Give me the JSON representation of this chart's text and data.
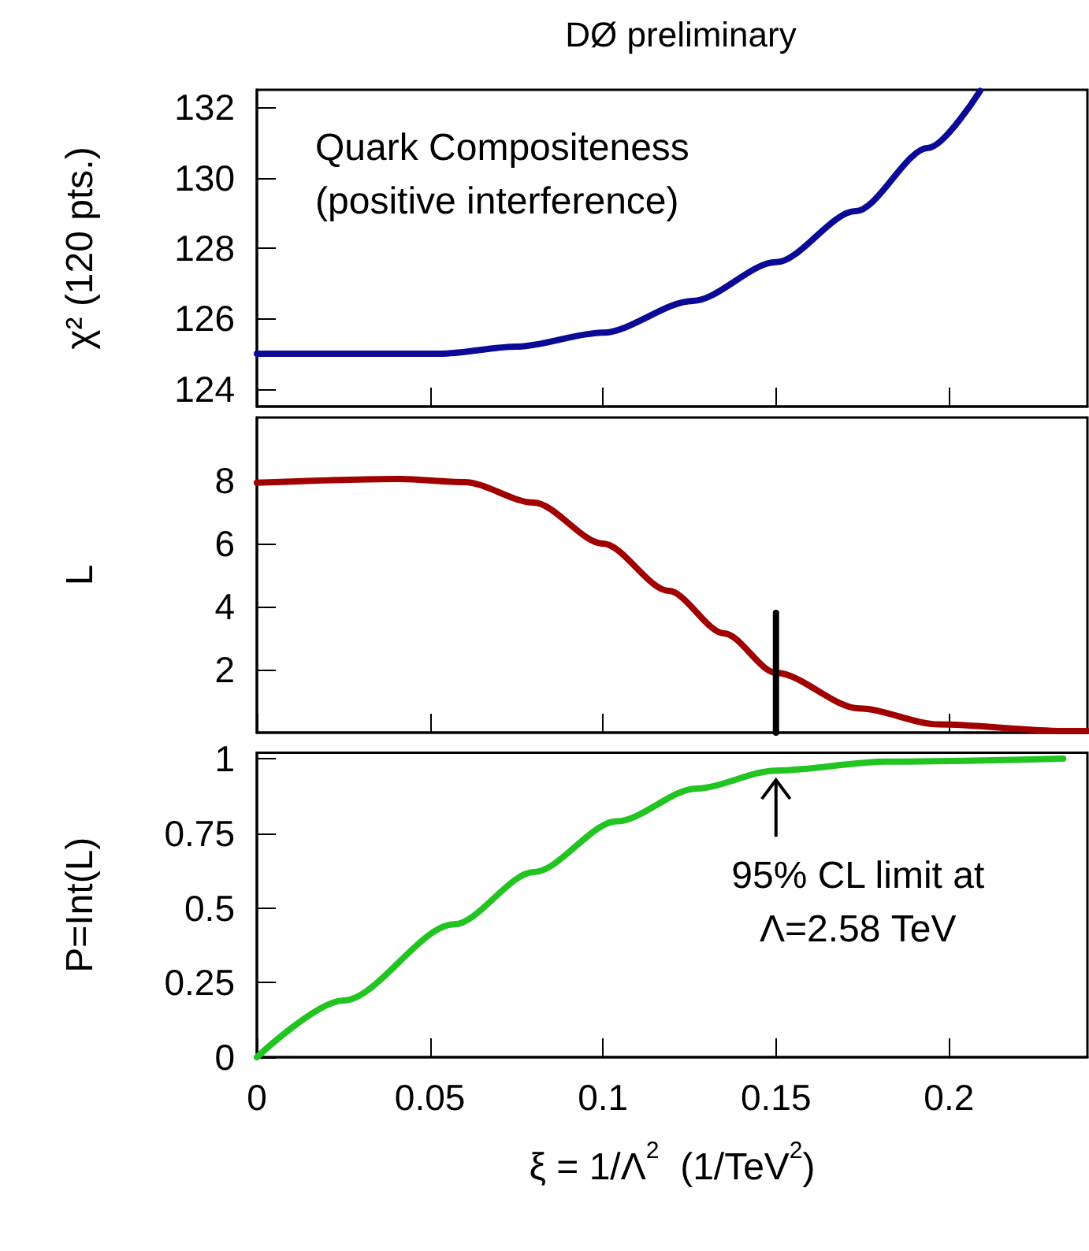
{
  "chart_data": [
    {
      "type": "line",
      "title": "DØ preliminary",
      "ylabel": "χ² (120 pts.)",
      "annotations": [
        "Quark Compositeness\n(positive interference)"
      ],
      "xlim": [
        0,
        0.24
      ],
      "xticks": [
        0,
        0.05,
        0.1,
        0.15,
        0.2
      ],
      "ylim": [
        123.5,
        132.5
      ],
      "yticks": [
        124,
        126,
        128,
        130,
        132
      ],
      "tick_labels": "y",
      "series": [
        {
          "color": "#0a0a96",
          "x": [
            0,
            0.053,
            0.075,
            0.1,
            0.126,
            0.15,
            0.173,
            0.194,
            0.209
          ],
          "values": [
            125,
            125,
            125.2,
            125.6,
            126.5,
            127.6,
            129.05,
            130.85,
            132.47
          ]
        }
      ]
    },
    {
      "type": "line",
      "ylabel": "L",
      "xlim": [
        0,
        0.24
      ],
      "xticks": [
        0,
        0.05,
        0.1,
        0.15,
        0.2
      ],
      "ylim": [
        0,
        10
      ],
      "yticks": [
        2,
        4,
        6,
        8
      ],
      "tick_labels": "y",
      "series": [
        {
          "color": "#a00000",
          "x": [
            0,
            0.041,
            0.06,
            0.08,
            0.1,
            0.119,
            0.135,
            0.15,
            0.174,
            0.197,
            0.233,
            0.24
          ],
          "values": [
            7.93,
            8.05,
            7.95,
            7.3,
            6.0,
            4.5,
            3.15,
            1.9,
            0.77,
            0.26,
            0.05,
            0.05
          ]
        },
        {
          "color": "#000000",
          "x": [
            0.15,
            0.15
          ],
          "values": [
            0,
            3.8
          ]
        }
      ]
    },
    {
      "type": "line",
      "ylabel": "P=Int(L)",
      "xlabel": "ξ = 1/Λ$^{2}$  (1/TeV$^{2}$)",
      "annotations": [
        {
          "text": "95% CL limit at\nΛ=2.58 TeV",
          "x": 0.15,
          "y": 0.96
        }
      ],
      "xlim": [
        0,
        0.24
      ],
      "xticks": [
        0,
        0.05,
        0.1,
        0.15,
        0.2
      ],
      "ylim": [
        0,
        1.02
      ],
      "yticks": [
        0,
        0.25,
        0.5,
        0.75,
        1
      ],
      "series": [
        {
          "color": "#22c422",
          "x": [
            0,
            0.025,
            0.057,
            0.08,
            0.104,
            0.127,
            0.15,
            0.182,
            0.233
          ],
          "values": [
            0,
            0.19,
            0.445,
            0.62,
            0.79,
            0.9,
            0.96,
            0.99,
            1.0
          ]
        }
      ]
    }
  ]
}
